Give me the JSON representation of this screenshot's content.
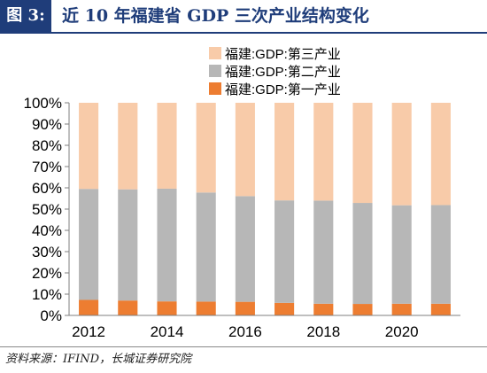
{
  "figure": {
    "label": "图 3:",
    "title": "近 10 年福建省 GDP 三次产业结构变化",
    "source": "资料来源：IFIND，长城证券研究院"
  },
  "chart_data": {
    "type": "bar",
    "stacked": true,
    "categories": [
      "2012",
      "2013",
      "2014",
      "2015",
      "2016",
      "2017",
      "2018",
      "2019",
      "2020",
      "2021"
    ],
    "x_tick_labels": [
      "2012",
      "2014",
      "2016",
      "2018",
      "2020"
    ],
    "ylim": [
      0,
      100
    ],
    "yticks": [
      "0%",
      "10%",
      "20%",
      "30%",
      "40%",
      "50%",
      "60%",
      "70%",
      "80%",
      "90%",
      "100%"
    ],
    "legend_position": "top-right",
    "grid": false,
    "series": [
      {
        "name": "福建:GDP:第一产业",
        "color": "#ed7d31",
        "values": [
          7.3,
          7.0,
          6.6,
          6.5,
          6.4,
          5.9,
          5.5,
          5.4,
          5.5,
          5.5
        ]
      },
      {
        "name": "福建:GDP:第二产业",
        "color": "#b7b7b7",
        "values": [
          52.2,
          52.3,
          53.0,
          51.3,
          49.7,
          48.2,
          48.5,
          47.5,
          46.3,
          46.4
        ]
      },
      {
        "name": "福建:GDP:第三产业",
        "color": "#f8cba9",
        "values": [
          40.5,
          40.7,
          40.4,
          42.2,
          43.9,
          45.9,
          46.0,
          47.1,
          48.2,
          48.1
        ]
      }
    ]
  }
}
